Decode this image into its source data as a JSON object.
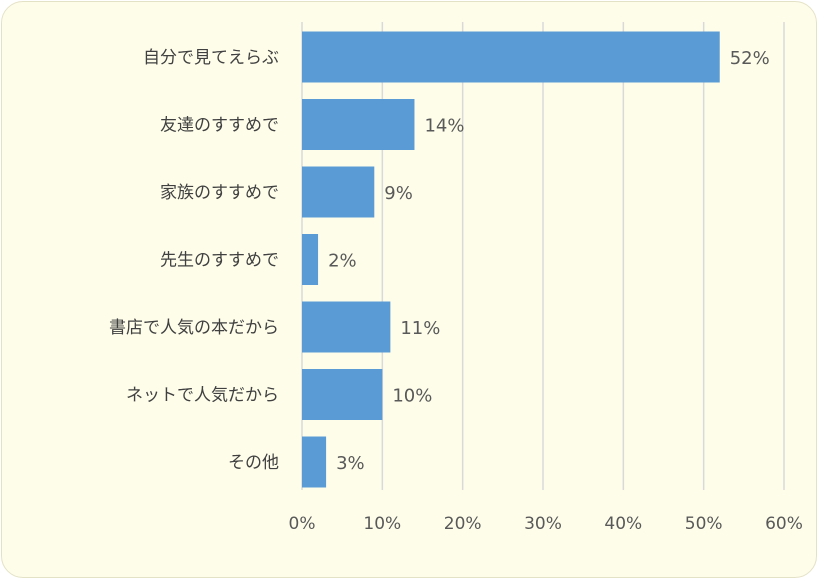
{
  "colors": {
    "background": "#fefdea",
    "bar": "#5b9bd5",
    "gridline": "#d9d9d9",
    "label_text": "#404040",
    "value_text": "#595959"
  },
  "chart_data": {
    "type": "bar",
    "orientation": "horizontal",
    "title": "",
    "xlabel": "",
    "ylabel": "",
    "categories": [
      "自分で見てえらぶ",
      "友達のすすめで",
      "家族のすすめで",
      "先生のすすめで",
      "書店で人気の本だから",
      "ネットで人気だから",
      "その他"
    ],
    "values": [
      52,
      14,
      9,
      2,
      11,
      10,
      3
    ],
    "data_labels": [
      "52%",
      "14%",
      "9%",
      "2%",
      "11%",
      "10%",
      "3%"
    ],
    "xlim": [
      0,
      60
    ],
    "x_ticks": [
      0,
      10,
      20,
      30,
      40,
      50,
      60
    ],
    "x_tick_labels": [
      "0%",
      "10%",
      "20%",
      "30%",
      "40%",
      "50%",
      "60%"
    ],
    "grid": "vertical",
    "legend": "none"
  }
}
